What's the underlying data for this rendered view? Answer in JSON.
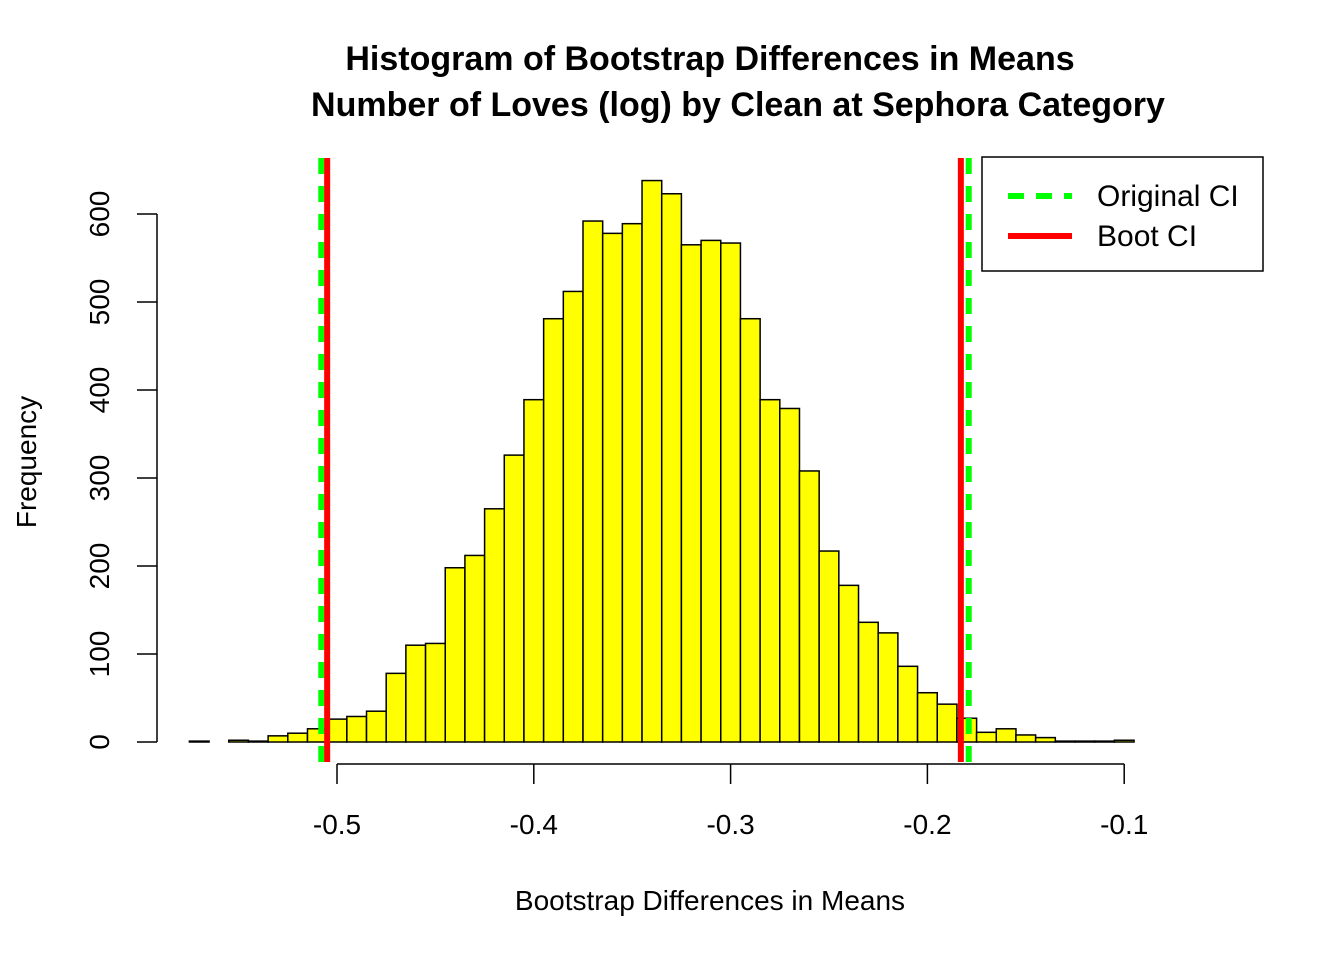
{
  "chart_data": {
    "type": "bar",
    "title": "Histogram of Bootstrap Differences in Means",
    "subtitle": "Number of Loves (log) by Clean at Sephora Category",
    "xlabel": "Bootstrap Differences in Means",
    "ylabel": "Frequency",
    "xlim": [
      -0.575,
      -0.1
    ],
    "ylim": [
      0,
      640
    ],
    "x_ticks": [
      -0.5,
      -0.4,
      -0.3,
      -0.2,
      -0.1
    ],
    "y_ticks": [
      0,
      100,
      200,
      300,
      400,
      500,
      600
    ],
    "bin_width": 0.01,
    "bin_start": -0.575,
    "values": [
      1,
      0,
      2,
      1,
      7,
      10,
      15,
      26,
      29,
      35,
      78,
      110,
      112,
      198,
      212,
      265,
      326,
      389,
      481,
      512,
      592,
      578,
      589,
      638,
      623,
      565,
      570,
      567,
      481,
      389,
      379,
      308,
      217,
      178,
      136,
      124,
      86,
      56,
      43,
      27,
      11,
      15,
      8,
      5,
      1,
      1,
      1,
      2
    ],
    "bar_color": "#ffff00",
    "vlines": [
      {
        "name": "Original CI",
        "values": [
          -0.508,
          -0.179
        ],
        "color": "#00ff00",
        "style": "dashed"
      },
      {
        "name": "Boot CI",
        "values": [
          -0.505,
          -0.183
        ],
        "color": "#ff0000",
        "style": "solid"
      }
    ],
    "legend": {
      "position": "top-right",
      "entries": [
        {
          "label": "Original CI",
          "color": "#00ff00",
          "style": "dashed"
        },
        {
          "label": "Boot CI",
          "color": "#ff0000",
          "style": "solid"
        }
      ]
    },
    "grid": false
  }
}
